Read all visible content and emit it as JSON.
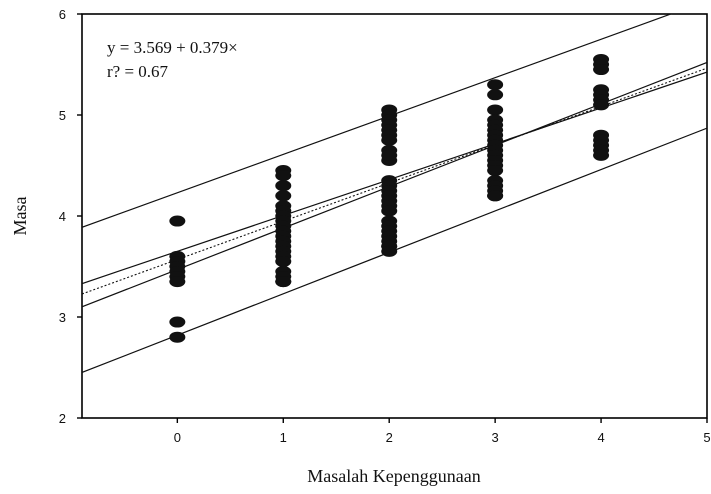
{
  "chart_data": {
    "type": "scatter",
    "title": "",
    "xlabel": "Masalah Kepenggunaan",
    "ylabel": "Masa",
    "xlim": [
      -0.9,
      5
    ],
    "ylim": [
      2,
      6
    ],
    "x_ticks": [
      "0",
      "1",
      "2",
      "3",
      "4",
      "5"
    ],
    "y_ticks": [
      "2",
      "3",
      "4",
      "5",
      "6"
    ],
    "grid": false,
    "annotations": [
      "y = 3.569 + 0.379×",
      "r? = 0.67"
    ],
    "points": {
      "x": [
        0,
        0,
        0,
        0,
        0,
        0,
        0,
        0,
        0,
        1,
        1,
        1,
        1,
        1,
        1,
        1,
        1,
        1,
        1,
        1,
        1,
        1,
        1,
        1,
        1,
        1,
        1,
        1,
        1,
        2,
        2,
        2,
        2,
        2,
        2,
        2,
        2,
        2,
        2,
        2,
        2,
        2,
        2,
        2,
        2,
        2,
        2,
        2,
        2,
        2,
        2,
        2,
        2,
        2,
        3,
        3,
        3,
        3,
        3,
        3,
        3,
        3,
        3,
        3,
        3,
        3,
        3,
        3,
        3,
        3,
        3,
        3,
        3,
        4,
        4,
        4,
        4,
        4,
        4,
        4,
        4,
        4,
        4,
        4,
        4
      ],
      "y": [
        3.95,
        3.6,
        3.55,
        3.5,
        3.45,
        3.4,
        3.35,
        2.95,
        2.8,
        4.45,
        4.4,
        4.3,
        4.2,
        4.1,
        4.05,
        4.0,
        3.95,
        3.9,
        3.85,
        3.8,
        3.75,
        3.7,
        3.65,
        3.6,
        3.55,
        3.45,
        3.4,
        3.35,
        3.35,
        5.05,
        5.0,
        4.95,
        4.9,
        4.85,
        4.8,
        4.75,
        4.55,
        4.35,
        4.3,
        4.25,
        4.2,
        4.15,
        4.1,
        4.05,
        3.95,
        3.9,
        3.85,
        3.8,
        3.75,
        3.7,
        3.7,
        4.65,
        4.6,
        3.65,
        5.3,
        5.2,
        5.05,
        4.95,
        4.9,
        4.85,
        4.8,
        4.75,
        4.7,
        4.65,
        4.6,
        4.55,
        4.5,
        4.45,
        4.35,
        4.3,
        4.25,
        4.2,
        4.2,
        5.55,
        5.5,
        5.45,
        5.25,
        5.2,
        5.15,
        5.1,
        4.8,
        4.75,
        4.7,
        4.65,
        4.6
      ]
    },
    "lines": [
      {
        "name": "fit",
        "style": "dotted",
        "intercept": 3.569,
        "slope": 0.379
      },
      {
        "name": "confidence-upper",
        "style": "solid",
        "intercept": 3.65,
        "slope": 0.355
      },
      {
        "name": "confidence-lower",
        "style": "solid",
        "intercept": 3.47,
        "slope": 0.41
      },
      {
        "name": "prediction-upper",
        "style": "solid",
        "intercept": 4.23,
        "slope": 0.38
      },
      {
        "name": "prediction-lower",
        "style": "solid",
        "intercept": 2.82,
        "slope": 0.41
      }
    ]
  }
}
